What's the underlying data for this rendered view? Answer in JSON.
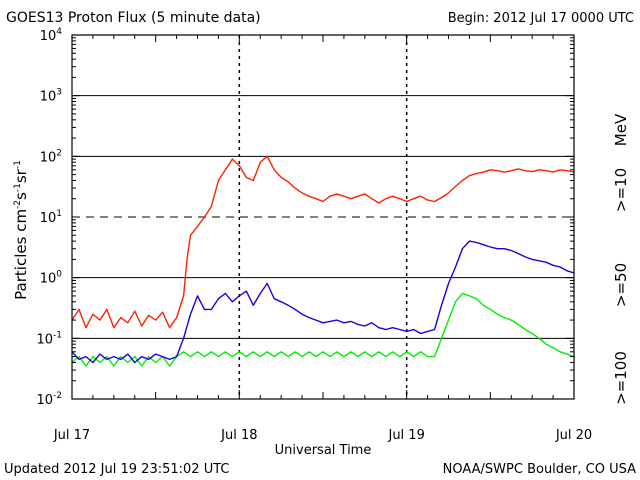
{
  "chart_data": {
    "type": "line",
    "title": "GOES13 Proton Flux (5 minute data)",
    "begin_label": "Begin: 2012 Jul 17 0000 UTC",
    "updated_label": "Updated 2012 Jul 19 23:51:02 UTC",
    "credit_label": "NOAA/SWPC Boulder, CO USA",
    "xlabel": "Universal Time",
    "ylabel_base": "Particles cm",
    "ylabel_sup1": "-2",
    "ylabel_mid1": "s",
    "ylabel_sup2": "-1",
    "ylabel_mid2": "sr",
    "ylabel_sup3": "-1",
    "y_scale": "log",
    "ylim": [
      0.01,
      10000
    ],
    "xlim_hours": [
      0,
      72
    ],
    "x_ticks": [
      {
        "hour": 0,
        "label": "Jul 17"
      },
      {
        "hour": 24,
        "label": "Jul 18"
      },
      {
        "hour": 48,
        "label": "Jul 19"
      },
      {
        "hour": 72,
        "label": "Jul 20"
      }
    ],
    "y_ticks": [
      {
        "exp": -2,
        "base": "10",
        "sup": "-2"
      },
      {
        "exp": -1,
        "base": "10",
        "sup": "-1"
      },
      {
        "exp": 0,
        "base": "10",
        "sup": "0"
      },
      {
        "exp": 1,
        "base": "10",
        "sup": "1"
      },
      {
        "exp": 2,
        "base": "10",
        "sup": "2"
      },
      {
        "exp": 3,
        "base": "10",
        "sup": "3"
      },
      {
        "exp": 4,
        "base": "10",
        "sup": "4"
      }
    ],
    "threshold_lines": [
      {
        "value": 10,
        "style": "dashed"
      },
      {
        "value": 0.1,
        "style": "solid"
      },
      {
        "value": 1,
        "style": "solid"
      },
      {
        "value": 100,
        "style": "solid"
      },
      {
        "value": 1000,
        "style": "solid"
      }
    ],
    "unit_label": "MeV",
    "series": [
      {
        "name": ">=10",
        "color": "#ff2000",
        "points": [
          [
            0,
            0.2
          ],
          [
            1,
            0.3
          ],
          [
            2,
            0.15
          ],
          [
            3,
            0.25
          ],
          [
            4,
            0.2
          ],
          [
            5,
            0.3
          ],
          [
            6,
            0.15
          ],
          [
            7,
            0.22
          ],
          [
            8,
            0.18
          ],
          [
            9,
            0.28
          ],
          [
            10,
            0.16
          ],
          [
            11,
            0.24
          ],
          [
            12,
            0.2
          ],
          [
            13,
            0.27
          ],
          [
            14,
            0.15
          ],
          [
            15,
            0.22
          ],
          [
            16,
            0.5
          ],
          [
            16.5,
            2
          ],
          [
            17,
            5
          ],
          [
            18,
            7
          ],
          [
            19,
            10
          ],
          [
            20,
            15
          ],
          [
            21,
            40
          ],
          [
            22,
            60
          ],
          [
            23,
            90
          ],
          [
            24,
            70
          ],
          [
            25,
            45
          ],
          [
            26,
            40
          ],
          [
            27,
            80
          ],
          [
            28,
            100
          ],
          [
            29,
            60
          ],
          [
            30,
            45
          ],
          [
            31,
            38
          ],
          [
            32,
            30
          ],
          [
            33,
            25
          ],
          [
            34,
            22
          ],
          [
            35,
            20
          ],
          [
            36,
            18
          ],
          [
            37,
            22
          ],
          [
            38,
            24
          ],
          [
            39,
            22
          ],
          [
            40,
            20
          ],
          [
            41,
            22
          ],
          [
            42,
            24
          ],
          [
            43,
            20
          ],
          [
            44,
            17
          ],
          [
            45,
            20
          ],
          [
            46,
            22
          ],
          [
            47,
            20
          ],
          [
            48,
            18
          ],
          [
            49,
            20
          ],
          [
            50,
            22
          ],
          [
            51,
            19
          ],
          [
            52,
            18
          ],
          [
            53,
            21
          ],
          [
            54,
            25
          ],
          [
            55,
            32
          ],
          [
            56,
            40
          ],
          [
            57,
            48
          ],
          [
            58,
            52
          ],
          [
            59,
            55
          ],
          [
            60,
            60
          ],
          [
            61,
            58
          ],
          [
            62,
            55
          ],
          [
            63,
            58
          ],
          [
            64,
            62
          ],
          [
            65,
            58
          ],
          [
            66,
            56
          ],
          [
            67,
            60
          ],
          [
            68,
            58
          ],
          [
            69,
            55
          ],
          [
            70,
            60
          ],
          [
            71,
            58
          ],
          [
            72,
            55
          ]
        ]
      },
      {
        "name": ">=50",
        "color": "#1a00e0",
        "points": [
          [
            0,
            0.06
          ],
          [
            1,
            0.045
          ],
          [
            2,
            0.05
          ],
          [
            3,
            0.04
          ],
          [
            4,
            0.055
          ],
          [
            5,
            0.045
          ],
          [
            6,
            0.05
          ],
          [
            7,
            0.045
          ],
          [
            8,
            0.055
          ],
          [
            9,
            0.04
          ],
          [
            10,
            0.05
          ],
          [
            11,
            0.045
          ],
          [
            12,
            0.055
          ],
          [
            13,
            0.05
          ],
          [
            14,
            0.045
          ],
          [
            15,
            0.05
          ],
          [
            16,
            0.1
          ],
          [
            17,
            0.25
          ],
          [
            18,
            0.5
          ],
          [
            19,
            0.3
          ],
          [
            20,
            0.3
          ],
          [
            21,
            0.45
          ],
          [
            22,
            0.55
          ],
          [
            23,
            0.4
          ],
          [
            24,
            0.5
          ],
          [
            25,
            0.6
          ],
          [
            26,
            0.35
          ],
          [
            27,
            0.55
          ],
          [
            28,
            0.8
          ],
          [
            29,
            0.45
          ],
          [
            30,
            0.4
          ],
          [
            31,
            0.35
          ],
          [
            32,
            0.3
          ],
          [
            33,
            0.25
          ],
          [
            34,
            0.22
          ],
          [
            35,
            0.2
          ],
          [
            36,
            0.18
          ],
          [
            37,
            0.19
          ],
          [
            38,
            0.2
          ],
          [
            39,
            0.18
          ],
          [
            40,
            0.19
          ],
          [
            41,
            0.17
          ],
          [
            42,
            0.16
          ],
          [
            43,
            0.18
          ],
          [
            44,
            0.15
          ],
          [
            45,
            0.14
          ],
          [
            46,
            0.15
          ],
          [
            47,
            0.14
          ],
          [
            48,
            0.13
          ],
          [
            49,
            0.14
          ],
          [
            50,
            0.12
          ],
          [
            51,
            0.13
          ],
          [
            52,
            0.14
          ],
          [
            53,
            0.35
          ],
          [
            54,
            0.8
          ],
          [
            55,
            1.5
          ],
          [
            56,
            3
          ],
          [
            57,
            4
          ],
          [
            58,
            3.8
          ],
          [
            59,
            3.5
          ],
          [
            60,
            3.2
          ],
          [
            61,
            3
          ],
          [
            62,
            3
          ],
          [
            63,
            2.8
          ],
          [
            64,
            2.5
          ],
          [
            65,
            2.2
          ],
          [
            66,
            2
          ],
          [
            67,
            1.9
          ],
          [
            68,
            1.8
          ],
          [
            69,
            1.6
          ],
          [
            70,
            1.5
          ],
          [
            71,
            1.3
          ],
          [
            72,
            1.2
          ]
        ]
      },
      {
        "name": ">=100",
        "color": "#00ee00",
        "points": [
          [
            0,
            0.04
          ],
          [
            1,
            0.05
          ],
          [
            2,
            0.035
          ],
          [
            3,
            0.05
          ],
          [
            4,
            0.04
          ],
          [
            5,
            0.05
          ],
          [
            6,
            0.035
          ],
          [
            7,
            0.05
          ],
          [
            8,
            0.04
          ],
          [
            9,
            0.05
          ],
          [
            10,
            0.035
          ],
          [
            11,
            0.05
          ],
          [
            12,
            0.04
          ],
          [
            13,
            0.05
          ],
          [
            14,
            0.035
          ],
          [
            15,
            0.05
          ],
          [
            16,
            0.06
          ],
          [
            17,
            0.05
          ],
          [
            18,
            0.06
          ],
          [
            19,
            0.05
          ],
          [
            20,
            0.06
          ],
          [
            21,
            0.05
          ],
          [
            22,
            0.06
          ],
          [
            23,
            0.05
          ],
          [
            24,
            0.06
          ],
          [
            25,
            0.05
          ],
          [
            26,
            0.06
          ],
          [
            27,
            0.05
          ],
          [
            28,
            0.06
          ],
          [
            29,
            0.05
          ],
          [
            30,
            0.06
          ],
          [
            31,
            0.05
          ],
          [
            32,
            0.06
          ],
          [
            33,
            0.05
          ],
          [
            34,
            0.06
          ],
          [
            35,
            0.05
          ],
          [
            36,
            0.06
          ],
          [
            37,
            0.05
          ],
          [
            38,
            0.06
          ],
          [
            39,
            0.05
          ],
          [
            40,
            0.06
          ],
          [
            41,
            0.05
          ],
          [
            42,
            0.06
          ],
          [
            43,
            0.05
          ],
          [
            44,
            0.06
          ],
          [
            45,
            0.05
          ],
          [
            46,
            0.06
          ],
          [
            47,
            0.05
          ],
          [
            48,
            0.06
          ],
          [
            49,
            0.05
          ],
          [
            50,
            0.06
          ],
          [
            51,
            0.05
          ],
          [
            52,
            0.05
          ],
          [
            53,
            0.1
          ],
          [
            54,
            0.2
          ],
          [
            55,
            0.4
          ],
          [
            56,
            0.55
          ],
          [
            57,
            0.5
          ],
          [
            58,
            0.45
          ],
          [
            59,
            0.35
          ],
          [
            60,
            0.3
          ],
          [
            61,
            0.25
          ],
          [
            62,
            0.22
          ],
          [
            63,
            0.2
          ],
          [
            64,
            0.17
          ],
          [
            65,
            0.14
          ],
          [
            66,
            0.12
          ],
          [
            67,
            0.1
          ],
          [
            68,
            0.08
          ],
          [
            69,
            0.07
          ],
          [
            70,
            0.06
          ],
          [
            71,
            0.055
          ],
          [
            72,
            0.05
          ]
        ]
      }
    ]
  }
}
